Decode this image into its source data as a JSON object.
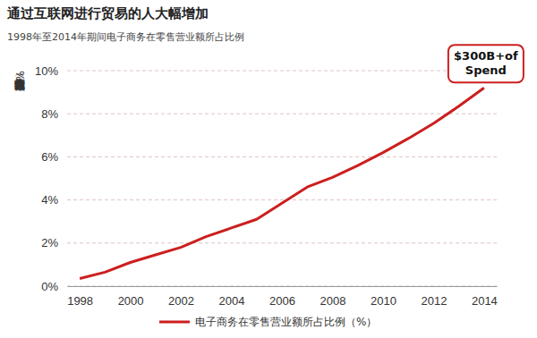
{
  "chart_data": {
    "type": "line",
    "title": "通过互联网进行贸易的人大幅增加",
    "subtitle": "1998年至2014年期间电子商务在零售营业额所占比例",
    "y_label": "电子商务在零售营业额所占比例（%）",
    "x": [
      1998,
      1999,
      2000,
      2001,
      2002,
      2003,
      2004,
      2005,
      2006,
      2007,
      2008,
      2009,
      2010,
      2011,
      2012,
      2013,
      2014
    ],
    "series": [
      {
        "name": "电子商务在零售营业额所占比例（%）",
        "color": "#cc1f1f",
        "values": [
          0.35,
          0.65,
          1.1,
          1.45,
          1.8,
          2.3,
          2.7,
          3.1,
          3.85,
          4.6,
          5.05,
          5.6,
          6.2,
          6.85,
          7.55,
          8.35,
          9.2
        ]
      }
    ],
    "xlim": [
      1997.5,
      2014.5
    ],
    "ylim": [
      0,
      10
    ],
    "xticks": [
      1998,
      2000,
      2002,
      2004,
      2006,
      2008,
      2010,
      2012,
      2014
    ],
    "yticks": [
      {
        "value": 0,
        "label": "0%"
      },
      {
        "value": 2,
        "label": "2%"
      },
      {
        "value": 4,
        "label": "4%"
      },
      {
        "value": 6,
        "label": "6%"
      },
      {
        "value": 8,
        "label": "8%"
      },
      {
        "value": 10,
        "label": "10%"
      }
    ],
    "grid": true,
    "legend": "bottom",
    "annotation": [
      "$300B+of",
      "Spend"
    ]
  }
}
